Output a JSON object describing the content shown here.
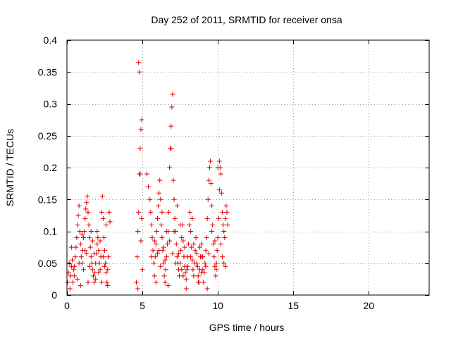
{
  "chart_data": {
    "type": "scatter",
    "title": "Day 252 of 2011, SRMTID for receiver onsa",
    "xlabel": "GPS time / hours",
    "ylabel": "SRMTID / TECUs",
    "xlim": [
      0,
      24
    ],
    "ylim": [
      0,
      0.4
    ],
    "xticks": [
      0,
      5,
      10,
      15,
      20
    ],
    "xtick_labels": [
      "0",
      "5",
      "10",
      "15",
      "20"
    ],
    "yticks": [
      0,
      0.05,
      0.1,
      0.15,
      0.2,
      0.25,
      0.3,
      0.35,
      0.4
    ],
    "ytick_labels": [
      "0",
      "0.05",
      "0.1",
      "0.15",
      "0.2",
      "0.25",
      "0.3",
      "0.35",
      "0.4"
    ],
    "grid": true,
    "marker": "+",
    "marker_color": "#e00000",
    "series": [
      {
        "name": "onsa",
        "points": [
          [
            0.05,
            0.02
          ],
          [
            0.1,
            0.035
          ],
          [
            0.15,
            0.05
          ],
          [
            0.2,
            0.01
          ],
          [
            0.25,
            0.03
          ],
          [
            0.3,
            0.045
          ],
          [
            0.35,
            0.055
          ],
          [
            0.4,
            0.02
          ],
          [
            0.45,
            0.04
          ],
          [
            0.5,
            0.03
          ],
          [
            0.55,
            0.06
          ],
          [
            0.6,
            0.075
          ],
          [
            0.65,
            0.09
          ],
          [
            0.7,
            0.11
          ],
          [
            0.75,
            0.125
          ],
          [
            0.8,
            0.14
          ],
          [
            0.85,
            0.1
          ],
          [
            0.9,
            0.08
          ],
          [
            0.95,
            0.06
          ],
          [
            1.0,
            0.05
          ],
          [
            1.05,
            0.07
          ],
          [
            1.1,
            0.09
          ],
          [
            1.15,
            0.1
          ],
          [
            1.2,
            0.12
          ],
          [
            1.25,
            0.135
          ],
          [
            1.3,
            0.145
          ],
          [
            1.35,
            0.155
          ],
          [
            1.4,
            0.13
          ],
          [
            1.45,
            0.11
          ],
          [
            1.5,
            0.09
          ],
          [
            1.55,
            0.075
          ],
          [
            1.6,
            0.06
          ],
          [
            1.65,
            0.05
          ],
          [
            1.7,
            0.04
          ],
          [
            1.75,
            0.03
          ],
          [
            1.8,
            0.02
          ],
          [
            1.85,
            0.035
          ],
          [
            1.9,
            0.05
          ],
          [
            1.95,
            0.065
          ],
          [
            2.0,
            0.08
          ],
          [
            2.05,
            0.09
          ],
          [
            2.1,
            0.07
          ],
          [
            2.15,
            0.05
          ],
          [
            2.2,
            0.04
          ],
          [
            2.25,
            0.06
          ],
          [
            2.3,
            0.13
          ],
          [
            2.35,
            0.155
          ],
          [
            2.4,
            0.12
          ],
          [
            2.45,
            0.09
          ],
          [
            2.5,
            0.07
          ],
          [
            2.55,
            0.05
          ],
          [
            2.6,
            0.035
          ],
          [
            2.65,
            0.02
          ],
          [
            2.7,
            0.04
          ],
          [
            2.75,
            0.06
          ],
          [
            2.8,
            0.13
          ],
          [
            2.85,
            0.115
          ],
          [
            0.3,
            0.075
          ],
          [
            0.5,
            0.045
          ],
          [
            0.7,
            0.025
          ],
          [
            0.9,
            0.015
          ],
          [
            1.1,
            0.04
          ],
          [
            1.3,
            0.065
          ],
          [
            1.5,
            0.045
          ],
          [
            1.7,
            0.085
          ],
          [
            1.9,
            0.025
          ],
          [
            2.1,
            0.035
          ],
          [
            2.3,
            0.02
          ],
          [
            2.5,
            0.045
          ],
          [
            2.7,
            0.015
          ],
          [
            1.6,
            0.1
          ],
          [
            1.8,
            0.065
          ],
          [
            2.0,
            0.1
          ],
          [
            2.2,
            0.085
          ],
          [
            2.4,
            0.06
          ],
          [
            2.6,
            0.11
          ],
          [
            0.8,
            0.05
          ],
          [
            1.0,
            0.095
          ],
          [
            1.2,
            0.07
          ],
          [
            1.4,
            0.02
          ],
          [
            4.6,
            0.02
          ],
          [
            4.65,
            0.06
          ],
          [
            4.7,
            0.1
          ],
          [
            4.75,
            0.13
          ],
          [
            4.8,
            0.19
          ],
          [
            4.85,
            0.23
          ],
          [
            4.9,
            0.26
          ],
          [
            4.95,
            0.275
          ],
          [
            4.75,
            0.365
          ],
          [
            4.8,
            0.35
          ],
          [
            4.85,
            0.19
          ],
          [
            4.9,
            0.085
          ],
          [
            4.95,
            0.12
          ],
          [
            4.7,
            0.01
          ],
          [
            5.0,
            0.04
          ],
          [
            5.3,
            0.19
          ],
          [
            5.4,
            0.17
          ],
          [
            5.5,
            0.15
          ],
          [
            5.55,
            0.13
          ],
          [
            5.6,
            0.11
          ],
          [
            5.65,
            0.09
          ],
          [
            5.7,
            0.07
          ],
          [
            5.75,
            0.05
          ],
          [
            5.8,
            0.03
          ],
          [
            5.85,
            0.06
          ],
          [
            5.9,
            0.08
          ],
          [
            5.95,
            0.1
          ],
          [
            6.0,
            0.12
          ],
          [
            6.05,
            0.14
          ],
          [
            6.1,
            0.16
          ],
          [
            6.15,
            0.18
          ],
          [
            6.2,
            0.15
          ],
          [
            6.25,
            0.11
          ],
          [
            6.3,
            0.09
          ],
          [
            6.35,
            0.07
          ],
          [
            6.4,
            0.05
          ],
          [
            6.45,
            0.03
          ],
          [
            6.5,
            0.02
          ],
          [
            6.55,
            0.04
          ],
          [
            6.6,
            0.06
          ],
          [
            6.65,
            0.08
          ],
          [
            6.7,
            0.1
          ],
          [
            6.75,
            0.13
          ],
          [
            6.8,
            0.2
          ],
          [
            6.85,
            0.23
          ],
          [
            6.9,
            0.265
          ],
          [
            6.95,
            0.295
          ],
          [
            7.0,
            0.315
          ],
          [
            7.05,
            0.18
          ],
          [
            7.1,
            0.15
          ],
          [
            7.15,
            0.12
          ],
          [
            7.2,
            0.1
          ],
          [
            7.25,
            0.08
          ],
          [
            7.3,
            0.06
          ],
          [
            7.35,
            0.05
          ],
          [
            7.4,
            0.04
          ],
          [
            7.45,
            0.03
          ],
          [
            7.5,
            0.05
          ],
          [
            7.55,
            0.07
          ],
          [
            7.6,
            0.09
          ],
          [
            7.65,
            0.11
          ],
          [
            7.7,
            0.085
          ],
          [
            7.75,
            0.06
          ],
          [
            7.8,
            0.045
          ],
          [
            7.85,
            0.035
          ],
          [
            7.9,
            0.025
          ],
          [
            7.95,
            0.04
          ],
          [
            8.0,
            0.06
          ],
          [
            8.05,
            0.08
          ],
          [
            8.1,
            0.11
          ],
          [
            8.15,
            0.13
          ],
          [
            8.2,
            0.1
          ],
          [
            8.25,
            0.075
          ],
          [
            8.3,
            0.055
          ],
          [
            8.35,
            0.04
          ],
          [
            8.4,
            0.03
          ],
          [
            8.45,
            0.05
          ],
          [
            8.5,
            0.07
          ],
          [
            8.55,
            0.09
          ],
          [
            8.6,
            0.065
          ],
          [
            8.65,
            0.045
          ],
          [
            8.7,
            0.03
          ],
          [
            8.75,
            0.02
          ],
          [
            8.8,
            0.04
          ],
          [
            8.85,
            0.06
          ],
          [
            8.9,
            0.08
          ],
          [
            8.95,
            0.06
          ],
          [
            9.0,
            0.04
          ],
          [
            9.05,
            0.02
          ],
          [
            9.1,
            0.035
          ],
          [
            9.15,
            0.05
          ],
          [
            9.2,
            0.07
          ],
          [
            9.25,
            0.09
          ],
          [
            9.3,
            0.12
          ],
          [
            9.35,
            0.15
          ],
          [
            9.4,
            0.18
          ],
          [
            9.45,
            0.2
          ],
          [
            9.5,
            0.21
          ],
          [
            9.55,
            0.175
          ],
          [
            9.6,
            0.14
          ],
          [
            9.65,
            0.11
          ],
          [
            9.7,
            0.08
          ],
          [
            9.75,
            0.06
          ],
          [
            9.8,
            0.045
          ],
          [
            9.85,
            0.03
          ],
          [
            9.9,
            0.05
          ],
          [
            9.95,
            0.07
          ],
          [
            10.0,
            0.09
          ],
          [
            10.05,
            0.12
          ],
          [
            10.1,
            0.165
          ],
          [
            10.15,
            0.2
          ],
          [
            10.2,
            0.19
          ],
          [
            10.25,
            0.16
          ],
          [
            10.3,
            0.13
          ],
          [
            10.35,
            0.11
          ],
          [
            10.4,
            0.1
          ],
          [
            10.45,
            0.09
          ],
          [
            10.5,
            0.12
          ],
          [
            10.55,
            0.14
          ],
          [
            10.6,
            0.13
          ],
          [
            10.65,
            0.11
          ],
          [
            10.2,
            0.08
          ],
          [
            10.3,
            0.06
          ],
          [
            10.4,
            0.05
          ],
          [
            10.5,
            0.045
          ],
          [
            5.6,
            0.06
          ],
          [
            5.8,
            0.085
          ],
          [
            6.0,
            0.065
          ],
          [
            6.2,
            0.045
          ],
          [
            6.4,
            0.075
          ],
          [
            6.6,
            0.1
          ],
          [
            6.8,
            0.085
          ],
          [
            7.0,
            0.065
          ],
          [
            7.2,
            0.05
          ],
          [
            7.4,
            0.065
          ],
          [
            7.6,
            0.04
          ],
          [
            7.8,
            0.075
          ],
          [
            8.0,
            0.045
          ],
          [
            8.2,
            0.06
          ],
          [
            8.4,
            0.08
          ],
          [
            8.6,
            0.05
          ],
          [
            8.8,
            0.075
          ],
          [
            9.0,
            0.06
          ],
          [
            9.2,
            0.045
          ],
          [
            9.4,
            0.065
          ],
          [
            6.3,
            0.13
          ],
          [
            6.9,
            0.23
          ],
          [
            7.1,
            0.1
          ],
          [
            7.3,
            0.14
          ],
          [
            7.5,
            0.11
          ],
          [
            8.3,
            0.12
          ],
          [
            9.6,
            0.1
          ],
          [
            9.8,
            0.085
          ],
          [
            10.0,
            0.2
          ],
          [
            10.1,
            0.21
          ],
          [
            5.9,
            0.02
          ],
          [
            6.7,
            0.015
          ],
          [
            7.9,
            0.01
          ],
          [
            8.7,
            0.02
          ],
          [
            9.3,
            0.01
          ],
          [
            6.1,
            0.07
          ],
          [
            6.5,
            0.055
          ],
          [
            7.7,
            0.03
          ],
          [
            8.9,
            0.035
          ],
          [
            9.9,
            0.04
          ]
        ]
      }
    ]
  }
}
